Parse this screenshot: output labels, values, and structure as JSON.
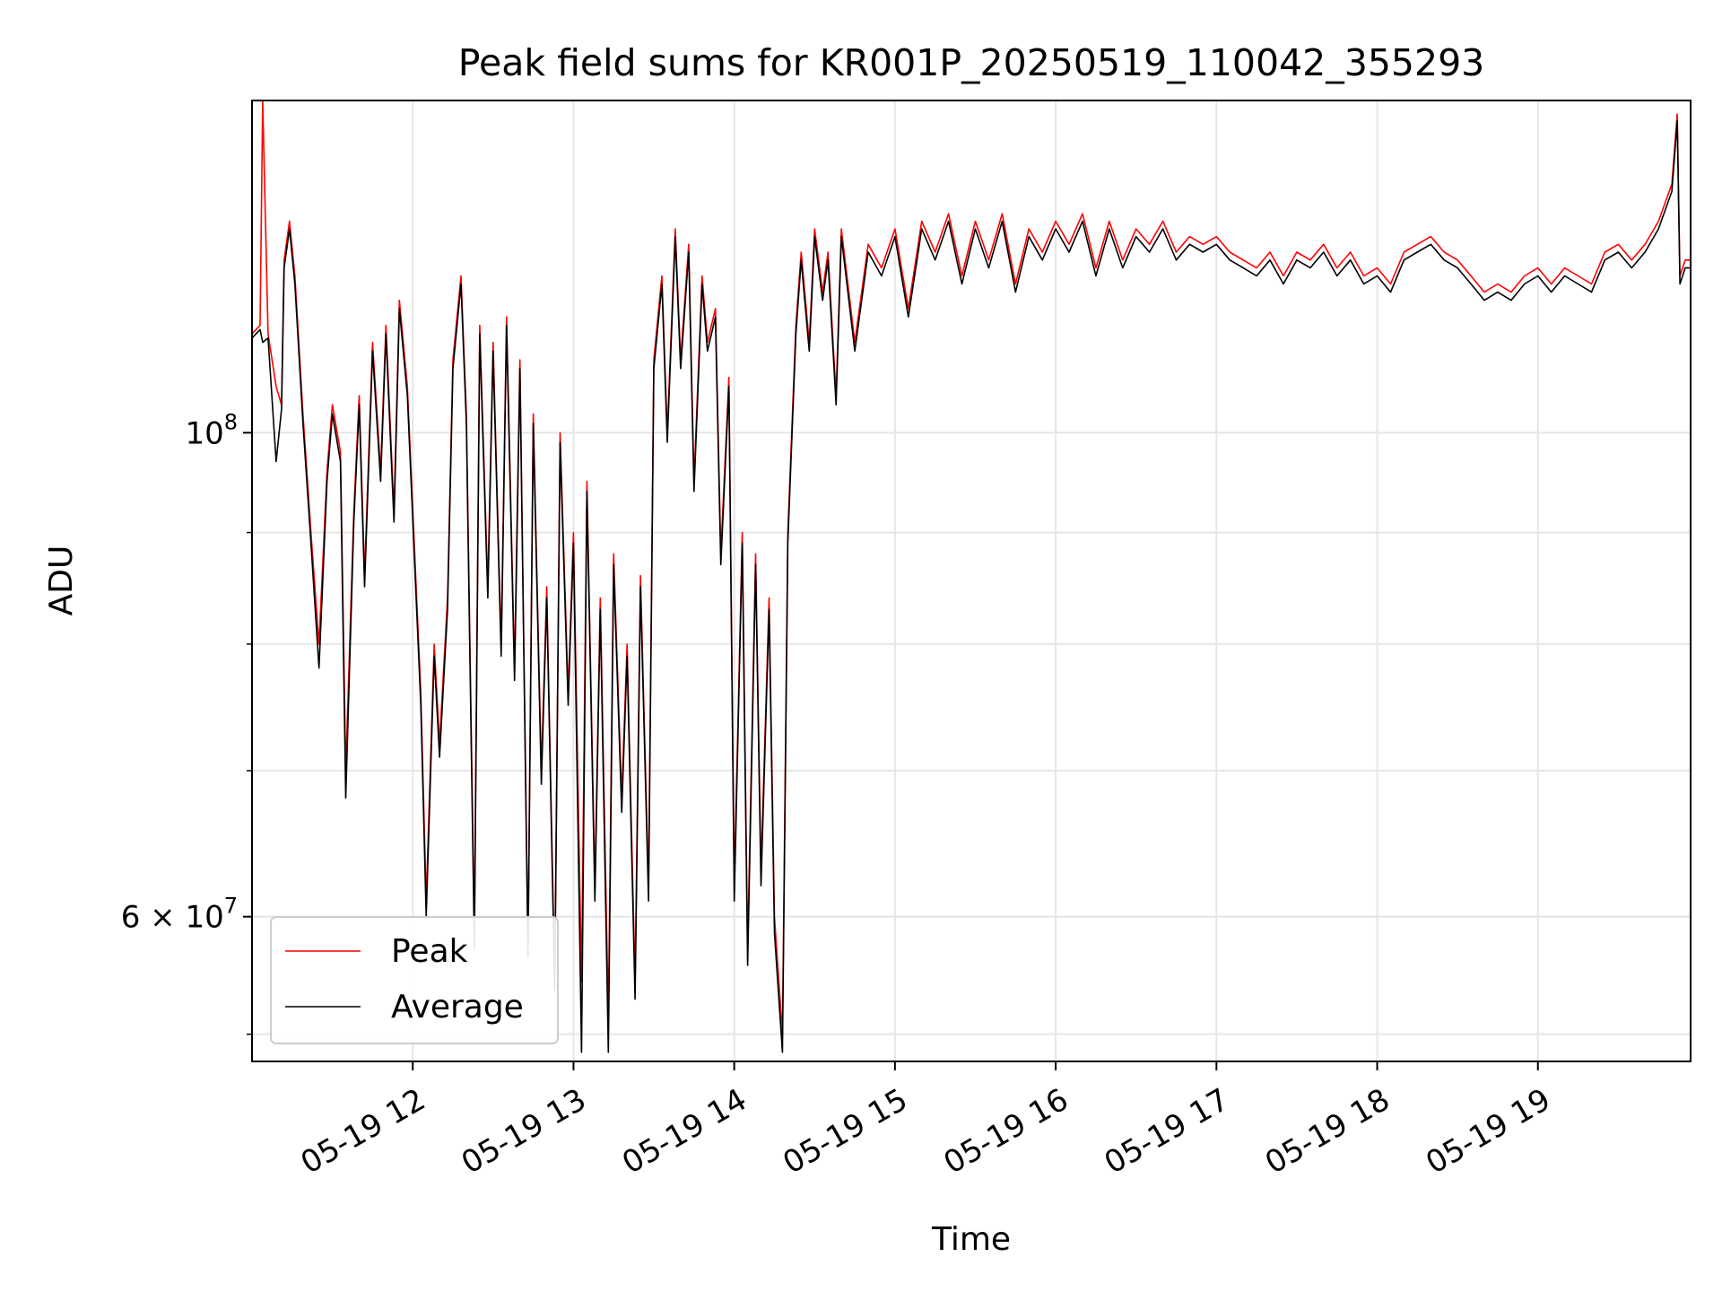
{
  "chart_data": {
    "type": "line",
    "title": "Peak field sums for KR001P_20250519_110042_355293",
    "xlabel": "Time",
    "ylabel": "ADU",
    "yscale": "log",
    "xlim": [
      "2025-05-19T11:00",
      "2025-05-19T19:57"
    ],
    "ylim": [
      51500000,
      142000000
    ],
    "grid": true,
    "legend_position": "lower-left",
    "x_ticks": [
      {
        "value": "2025-05-19T12:00",
        "label": "05-19 12"
      },
      {
        "value": "2025-05-19T13:00",
        "label": "05-19 13"
      },
      {
        "value": "2025-05-19T14:00",
        "label": "05-19 14"
      },
      {
        "value": "2025-05-19T15:00",
        "label": "05-19 15"
      },
      {
        "value": "2025-05-19T16:00",
        "label": "05-19 16"
      },
      {
        "value": "2025-05-19T17:00",
        "label": "05-19 17"
      },
      {
        "value": "2025-05-19T18:00",
        "label": "05-19 18"
      },
      {
        "value": "2025-05-19T19:00",
        "label": "05-19 19"
      }
    ],
    "y_ticks_major": [
      {
        "value": 100000000,
        "label": "10",
        "exponent": "8"
      },
      {
        "value": 60000000,
        "label": "6 × 10",
        "exponent": "7"
      }
    ],
    "y_ticks_minor": [
      53000000,
      70000000,
      80000000,
      90000000
    ],
    "series": [
      {
        "name": "Peak",
        "color": "#ff0000",
        "x": [
          "2025-05-19T11:00",
          "2025-05-19T11:03",
          "2025-05-19T11:04",
          "2025-05-19T11:06",
          "2025-05-19T11:09",
          "2025-05-19T11:11",
          "2025-05-19T11:12",
          "2025-05-19T11:14",
          "2025-05-19T11:16",
          "2025-05-19T11:19",
          "2025-05-19T11:22",
          "2025-05-19T11:25",
          "2025-05-19T11:28",
          "2025-05-19T11:30",
          "2025-05-19T11:33",
          "2025-05-19T11:35",
          "2025-05-19T11:38",
          "2025-05-19T11:40",
          "2025-05-19T11:42",
          "2025-05-19T11:45",
          "2025-05-19T11:48",
          "2025-05-19T11:50",
          "2025-05-19T11:53",
          "2025-05-19T11:55",
          "2025-05-19T11:58",
          "2025-05-19T12:03",
          "2025-05-19T12:05",
          "2025-05-19T12:08",
          "2025-05-19T12:10",
          "2025-05-19T12:13",
          "2025-05-19T12:15",
          "2025-05-19T12:18",
          "2025-05-19T12:20",
          "2025-05-19T12:23",
          "2025-05-19T12:25",
          "2025-05-19T12:28",
          "2025-05-19T12:30",
          "2025-05-19T12:33",
          "2025-05-19T12:35",
          "2025-05-19T12:38",
          "2025-05-19T12:40",
          "2025-05-19T12:43",
          "2025-05-19T12:45",
          "2025-05-19T12:48",
          "2025-05-19T12:50",
          "2025-05-19T12:53",
          "2025-05-19T12:55",
          "2025-05-19T12:58",
          "2025-05-19T13:00",
          "2025-05-19T13:03",
          "2025-05-19T13:05",
          "2025-05-19T13:08",
          "2025-05-19T13:10",
          "2025-05-19T13:13",
          "2025-05-19T13:15",
          "2025-05-19T13:18",
          "2025-05-19T13:20",
          "2025-05-19T13:23",
          "2025-05-19T13:25",
          "2025-05-19T13:28",
          "2025-05-19T13:30",
          "2025-05-19T13:33",
          "2025-05-19T13:35",
          "2025-05-19T13:38",
          "2025-05-19T13:40",
          "2025-05-19T13:43",
          "2025-05-19T13:45",
          "2025-05-19T13:48",
          "2025-05-19T13:50",
          "2025-05-19T13:53",
          "2025-05-19T13:55",
          "2025-05-19T13:58",
          "2025-05-19T14:00",
          "2025-05-19T14:03",
          "2025-05-19T14:05",
          "2025-05-19T14:08",
          "2025-05-19T14:10",
          "2025-05-19T14:13",
          "2025-05-19T14:15",
          "2025-05-19T14:18",
          "2025-05-19T14:20",
          "2025-05-19T14:23",
          "2025-05-19T14:25",
          "2025-05-19T14:28",
          "2025-05-19T14:30",
          "2025-05-19T14:33",
          "2025-05-19T14:35",
          "2025-05-19T14:38",
          "2025-05-19T14:40",
          "2025-05-19T14:45",
          "2025-05-19T14:50",
          "2025-05-19T14:55",
          "2025-05-19T15:00",
          "2025-05-19T15:05",
          "2025-05-19T15:10",
          "2025-05-19T15:15",
          "2025-05-19T15:20",
          "2025-05-19T15:25",
          "2025-05-19T15:30",
          "2025-05-19T15:35",
          "2025-05-19T15:40",
          "2025-05-19T15:45",
          "2025-05-19T15:50",
          "2025-05-19T15:55",
          "2025-05-19T16:00",
          "2025-05-19T16:05",
          "2025-05-19T16:10",
          "2025-05-19T16:15",
          "2025-05-19T16:20",
          "2025-05-19T16:25",
          "2025-05-19T16:30",
          "2025-05-19T16:35",
          "2025-05-19T16:40",
          "2025-05-19T16:45",
          "2025-05-19T16:50",
          "2025-05-19T16:55",
          "2025-05-19T17:00",
          "2025-05-19T17:05",
          "2025-05-19T17:10",
          "2025-05-19T17:15",
          "2025-05-19T17:20",
          "2025-05-19T17:25",
          "2025-05-19T17:30",
          "2025-05-19T17:35",
          "2025-05-19T17:40",
          "2025-05-19T17:45",
          "2025-05-19T17:50",
          "2025-05-19T17:55",
          "2025-05-19T18:00",
          "2025-05-19T18:05",
          "2025-05-19T18:10",
          "2025-05-19T18:15",
          "2025-05-19T18:20",
          "2025-05-19T18:25",
          "2025-05-19T18:30",
          "2025-05-19T18:35",
          "2025-05-19T18:40",
          "2025-05-19T18:45",
          "2025-05-19T18:50",
          "2025-05-19T18:55",
          "2025-05-19T19:00",
          "2025-05-19T19:05",
          "2025-05-19T19:10",
          "2025-05-19T19:15",
          "2025-05-19T19:20",
          "2025-05-19T19:25",
          "2025-05-19T19:30",
          "2025-05-19T19:35",
          "2025-05-19T19:40",
          "2025-05-19T19:45",
          "2025-05-19T19:50",
          "2025-05-19T19:52",
          "2025-05-19T19:53",
          "2025-05-19T19:55",
          "2025-05-19T19:57"
        ],
        "values": [
          111000000,
          112000000,
          142000000,
          111000000,
          105000000,
          103000000,
          120000000,
          125000000,
          118000000,
          102000000,
          90000000,
          80000000,
          96000000,
          103000000,
          98000000,
          70000000,
          92000000,
          104000000,
          86000000,
          110000000,
          96000000,
          112000000,
          92000000,
          115000000,
          105000000,
          76000000,
          61000000,
          80000000,
          72000000,
          84000000,
          108000000,
          118000000,
          102000000,
          59000000,
          112000000,
          85000000,
          110000000,
          80000000,
          113000000,
          78000000,
          108000000,
          58000000,
          102000000,
          70000000,
          85000000,
          56000000,
          100000000,
          76000000,
          90000000,
          56000000,
          95000000,
          62000000,
          84000000,
          54000000,
          88000000,
          68000000,
          80000000,
          56000000,
          86000000,
          62000000,
          108000000,
          118000000,
          100000000,
          124000000,
          108000000,
          122000000,
          95000000,
          118000000,
          110000000,
          114000000,
          88000000,
          106000000,
          62000000,
          90000000,
          58000000,
          88000000,
          63000000,
          84000000,
          60000000,
          53000000,
          90000000,
          112000000,
          121000000,
          110000000,
          124000000,
          116000000,
          121000000,
          104000000,
          124000000,
          110000000,
          122000000,
          119000000,
          124000000,
          114000000,
          125000000,
          121000000,
          126000000,
          118000000,
          125000000,
          120000000,
          126000000,
          117000000,
          124000000,
          121000000,
          125000000,
          122000000,
          126000000,
          119000000,
          125000000,
          120000000,
          124000000,
          122000000,
          125000000,
          121000000,
          123000000,
          122000000,
          123000000,
          121000000,
          120000000,
          119000000,
          121000000,
          118000000,
          121000000,
          120000000,
          122000000,
          119000000,
          121000000,
          118000000,
          119000000,
          117000000,
          121000000,
          122000000,
          123000000,
          121000000,
          120000000,
          118000000,
          116000000,
          117000000,
          116000000,
          118000000,
          119000000,
          117000000,
          119000000,
          118000000,
          117000000,
          121000000,
          122000000,
          120000000,
          122000000,
          125000000,
          130000000,
          140000000,
          118000000,
          120000000,
          120000000
        ]
      },
      {
        "name": "Average",
        "color": "#000000",
        "x": [
          "2025-05-19T11:00",
          "2025-05-19T11:03",
          "2025-05-19T11:04",
          "2025-05-19T11:06",
          "2025-05-19T11:09",
          "2025-05-19T11:11",
          "2025-05-19T11:12",
          "2025-05-19T11:14",
          "2025-05-19T11:16",
          "2025-05-19T11:19",
          "2025-05-19T11:22",
          "2025-05-19T11:25",
          "2025-05-19T11:28",
          "2025-05-19T11:30",
          "2025-05-19T11:33",
          "2025-05-19T11:35",
          "2025-05-19T11:38",
          "2025-05-19T11:40",
          "2025-05-19T11:42",
          "2025-05-19T11:45",
          "2025-05-19T11:48",
          "2025-05-19T11:50",
          "2025-05-19T11:53",
          "2025-05-19T11:55",
          "2025-05-19T11:58",
          "2025-05-19T12:03",
          "2025-05-19T12:05",
          "2025-05-19T12:08",
          "2025-05-19T12:10",
          "2025-05-19T12:13",
          "2025-05-19T12:15",
          "2025-05-19T12:18",
          "2025-05-19T12:20",
          "2025-05-19T12:23",
          "2025-05-19T12:25",
          "2025-05-19T12:28",
          "2025-05-19T12:30",
          "2025-05-19T12:33",
          "2025-05-19T12:35",
          "2025-05-19T12:38",
          "2025-05-19T12:40",
          "2025-05-19T12:43",
          "2025-05-19T12:45",
          "2025-05-19T12:48",
          "2025-05-19T12:50",
          "2025-05-19T12:53",
          "2025-05-19T12:55",
          "2025-05-19T12:58",
          "2025-05-19T13:00",
          "2025-05-19T13:03",
          "2025-05-19T13:05",
          "2025-05-19T13:08",
          "2025-05-19T13:10",
          "2025-05-19T13:13",
          "2025-05-19T13:15",
          "2025-05-19T13:18",
          "2025-05-19T13:20",
          "2025-05-19T13:23",
          "2025-05-19T13:25",
          "2025-05-19T13:28",
          "2025-05-19T13:30",
          "2025-05-19T13:33",
          "2025-05-19T13:35",
          "2025-05-19T13:38",
          "2025-05-19T13:40",
          "2025-05-19T13:43",
          "2025-05-19T13:45",
          "2025-05-19T13:48",
          "2025-05-19T13:50",
          "2025-05-19T13:53",
          "2025-05-19T13:55",
          "2025-05-19T13:58",
          "2025-05-19T14:00",
          "2025-05-19T14:03",
          "2025-05-19T14:05",
          "2025-05-19T14:08",
          "2025-05-19T14:10",
          "2025-05-19T14:13",
          "2025-05-19T14:15",
          "2025-05-19T14:18",
          "2025-05-19T14:20",
          "2025-05-19T14:23",
          "2025-05-19T14:25",
          "2025-05-19T14:28",
          "2025-05-19T14:30",
          "2025-05-19T14:33",
          "2025-05-19T14:35",
          "2025-05-19T14:38",
          "2025-05-19T14:40",
          "2025-05-19T14:45",
          "2025-05-19T14:50",
          "2025-05-19T14:55",
          "2025-05-19T15:00",
          "2025-05-19T15:05",
          "2025-05-19T15:10",
          "2025-05-19T15:15",
          "2025-05-19T15:20",
          "2025-05-19T15:25",
          "2025-05-19T15:30",
          "2025-05-19T15:35",
          "2025-05-19T15:40",
          "2025-05-19T15:45",
          "2025-05-19T15:50",
          "2025-05-19T15:55",
          "2025-05-19T16:00",
          "2025-05-19T16:05",
          "2025-05-19T16:10",
          "2025-05-19T16:15",
          "2025-05-19T16:20",
          "2025-05-19T16:25",
          "2025-05-19T16:30",
          "2025-05-19T16:35",
          "2025-05-19T16:40",
          "2025-05-19T16:45",
          "2025-05-19T16:50",
          "2025-05-19T16:55",
          "2025-05-19T17:00",
          "2025-05-19T17:05",
          "2025-05-19T17:10",
          "2025-05-19T17:15",
          "2025-05-19T17:20",
          "2025-05-19T17:25",
          "2025-05-19T17:30",
          "2025-05-19T17:35",
          "2025-05-19T17:40",
          "2025-05-19T17:45",
          "2025-05-19T17:50",
          "2025-05-19T17:55",
          "2025-05-19T18:00",
          "2025-05-19T18:05",
          "2025-05-19T18:10",
          "2025-05-19T18:15",
          "2025-05-19T18:20",
          "2025-05-19T18:25",
          "2025-05-19T18:30",
          "2025-05-19T18:35",
          "2025-05-19T18:40",
          "2025-05-19T18:45",
          "2025-05-19T18:50",
          "2025-05-19T18:55",
          "2025-05-19T19:00",
          "2025-05-19T19:05",
          "2025-05-19T19:10",
          "2025-05-19T19:15",
          "2025-05-19T19:20",
          "2025-05-19T19:25",
          "2025-05-19T19:30",
          "2025-05-19T19:35",
          "2025-05-19T19:40",
          "2025-05-19T19:45",
          "2025-05-19T19:50",
          "2025-05-19T19:52",
          "2025-05-19T19:53",
          "2025-05-19T19:55",
          "2025-05-19T19:57"
        ],
        "values": [
          110500000,
          111500000,
          110000000,
          110500000,
          97000000,
          102500000,
          119000000,
          124000000,
          117000000,
          101000000,
          89000000,
          78000000,
          95000000,
          102000000,
          97000000,
          68000000,
          91000000,
          103000000,
          85000000,
          109000000,
          95000000,
          111000000,
          91000000,
          114000000,
          104000000,
          75000000,
          60000000,
          79000000,
          71000000,
          83000000,
          107000000,
          117000000,
          101000000,
          58000000,
          111000000,
          84000000,
          109000000,
          79000000,
          112000000,
          77000000,
          107000000,
          57500000,
          101000000,
          69000000,
          84000000,
          55500000,
          99000000,
          75000000,
          89000000,
          52000000,
          94000000,
          61000000,
          83000000,
          52000000,
          87000000,
          67000000,
          79000000,
          55000000,
          85000000,
          61000000,
          107000000,
          117000000,
          99000000,
          123000000,
          107000000,
          121000000,
          94000000,
          117000000,
          109000000,
          113000000,
          87000000,
          105000000,
          61000000,
          89000000,
          57000000,
          87000000,
          62000000,
          83000000,
          59000000,
          52000000,
          89000000,
          111000000,
          120000000,
          109000000,
          123000000,
          115000000,
          120000000,
          103000000,
          123000000,
          109000000,
          121000000,
          118000000,
          123000000,
          113000000,
          124000000,
          120000000,
          125000000,
          117000000,
          124000000,
          119000000,
          125000000,
          116000000,
          123000000,
          120000000,
          124000000,
          121000000,
          125000000,
          118000000,
          124000000,
          119000000,
          123000000,
          121000000,
          124000000,
          120000000,
          122000000,
          121000000,
          122000000,
          120000000,
          119000000,
          118000000,
          120000000,
          117000000,
          120000000,
          119000000,
          121000000,
          118000000,
          120000000,
          117000000,
          118000000,
          116000000,
          120000000,
          121000000,
          122000000,
          120000000,
          119000000,
          117000000,
          115000000,
          116000000,
          115000000,
          117000000,
          118000000,
          116000000,
          118000000,
          117000000,
          116000000,
          120000000,
          121000000,
          119000000,
          121000000,
          124000000,
          129000000,
          139000000,
          117000000,
          119000000,
          119000000
        ]
      }
    ]
  }
}
